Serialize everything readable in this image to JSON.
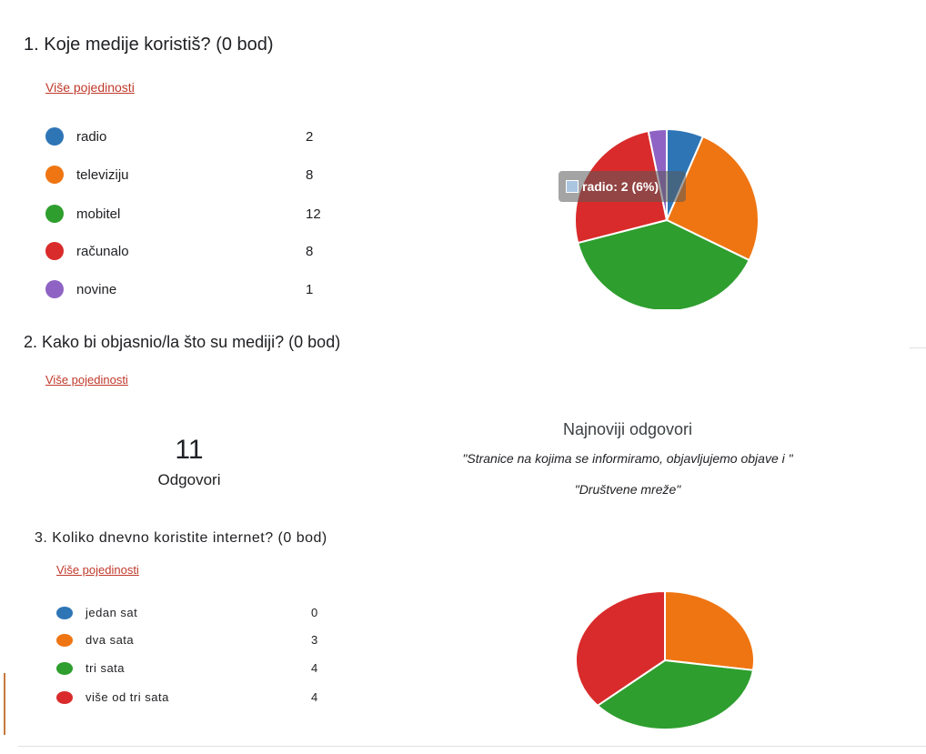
{
  "q1": {
    "title": "1.  Koje medije koristiš? (0 bod)",
    "details_link": "Više pojedinosti",
    "legend": [
      {
        "label": "radio",
        "value": 2,
        "color": "#2e75b6"
      },
      {
        "label": "televiziju",
        "value": 8,
        "color": "#ef7512"
      },
      {
        "label": "mobitel",
        "value": 12,
        "color": "#2e9e2e"
      },
      {
        "label": "računalo",
        "value": 8,
        "color": "#d92b2b"
      },
      {
        "label": "novine",
        "value": 1,
        "color": "#8e63c4"
      }
    ],
    "tooltip": "radio: 2 (6%)"
  },
  "q2": {
    "title": "2.  Kako bi objasnio/la što su mediji? (0 bod)",
    "details_link": "Više pojedinosti",
    "count": "11",
    "count_label": "Odgovori",
    "latest_title": "Najnoviji odgovori",
    "latest": [
      "\"Stranice na kojima se informiramo, objavljujemo objave i \"",
      "\"Društvene mreže\""
    ]
  },
  "q3": {
    "title": "3.  Koliko dnevno koristite internet? (0 bod)",
    "details_link": "Više pojedinosti",
    "legend": [
      {
        "label": "jedan sat",
        "value": 0,
        "color": "#2e75b6"
      },
      {
        "label": "dva sata",
        "value": 3,
        "color": "#ef7512"
      },
      {
        "label": "tri sata",
        "value": 4,
        "color": "#2e9e2e"
      },
      {
        "label": "više od tri sata",
        "value": 4,
        "color": "#d92b2b"
      }
    ]
  },
  "chart_data": [
    {
      "type": "pie",
      "categories": [
        "radio",
        "televiziju",
        "mobitel",
        "računalo",
        "novine"
      ],
      "values": [
        2,
        8,
        12,
        8,
        1
      ]
    },
    {
      "type": "pie",
      "categories": [
        "jedan sat",
        "dva sata",
        "tri sata",
        "više od tri sata"
      ],
      "values": [
        0,
        3,
        4,
        4
      ]
    }
  ]
}
